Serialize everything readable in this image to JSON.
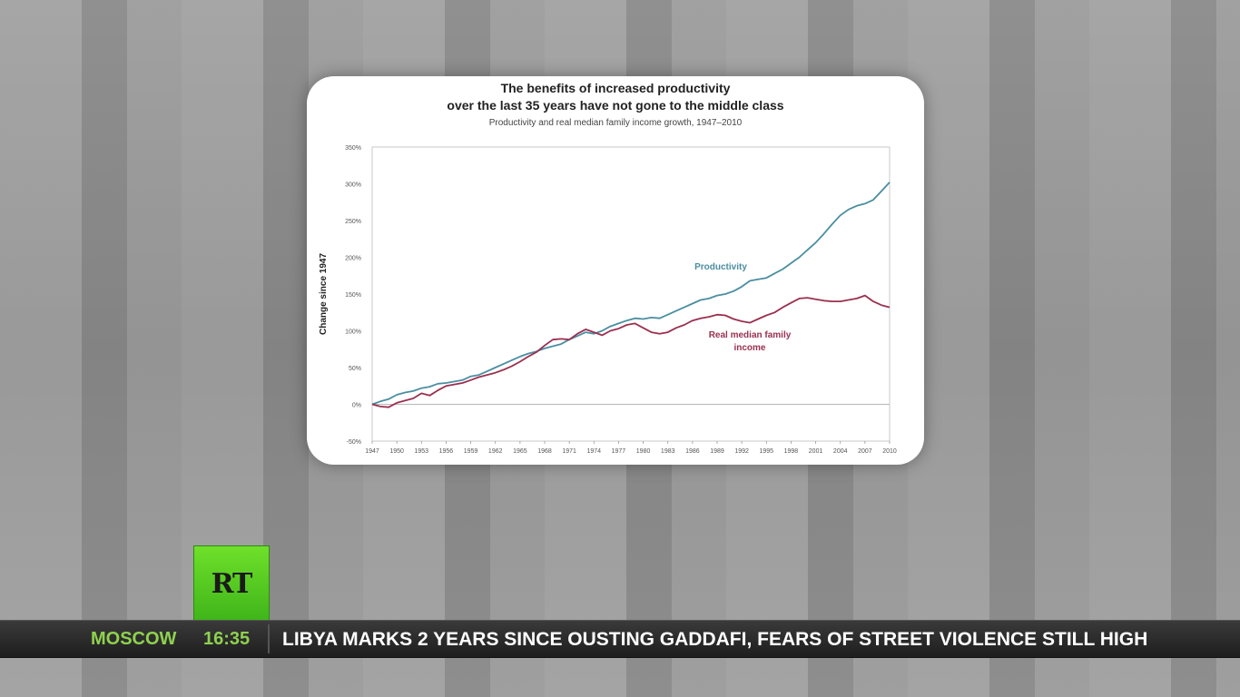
{
  "chart_data": {
    "type": "line",
    "title": "The benefits of increased productivity over the last 35 years have not gone to the middle class",
    "title_line1": "The benefits of increased productivity",
    "title_line2": "over the last 35 years have not gone to the middle class",
    "subtitle": "Productivity and real median family income growth, 1947–2010",
    "xlabel": "",
    "ylabel": "Change since 1947",
    "xlim": [
      1947,
      2010
    ],
    "ylim": [
      -50,
      350
    ],
    "y_ticks": [
      -50,
      0,
      50,
      100,
      150,
      200,
      250,
      300,
      350
    ],
    "y_tick_labels": [
      "-50%",
      "0%",
      "50%",
      "100%",
      "150%",
      "200%",
      "250%",
      "300%",
      "350%"
    ],
    "x_ticks": [
      1947,
      1950,
      1953,
      1956,
      1959,
      1962,
      1965,
      1968,
      1971,
      1974,
      1977,
      1980,
      1983,
      1986,
      1989,
      1992,
      1995,
      1998,
      2001,
      2004,
      2007,
      2010
    ],
    "grid": false,
    "series": [
      {
        "name": "Productivity",
        "color": "#4a8ea0",
        "x": [
          1947,
          1948,
          1949,
          1950,
          1951,
          1952,
          1953,
          1954,
          1955,
          1956,
          1957,
          1958,
          1959,
          1960,
          1961,
          1962,
          1963,
          1964,
          1965,
          1966,
          1967,
          1968,
          1969,
          1970,
          1971,
          1972,
          1973,
          1974,
          1975,
          1976,
          1977,
          1978,
          1979,
          1980,
          1981,
          1982,
          1983,
          1984,
          1985,
          1986,
          1987,
          1988,
          1989,
          1990,
          1991,
          1992,
          1993,
          1994,
          1995,
          1996,
          1997,
          1998,
          1999,
          2000,
          2001,
          2002,
          2003,
          2004,
          2005,
          2006,
          2007,
          2008,
          2009,
          2010
        ],
        "y": [
          0,
          4,
          7,
          13,
          16,
          18,
          22,
          24,
          28,
          29,
          31,
          33,
          38,
          40,
          45,
          50,
          55,
          60,
          65,
          69,
          72,
          76,
          79,
          82,
          88,
          93,
          98,
          96,
          100,
          106,
          110,
          114,
          117,
          116,
          118,
          117,
          122,
          127,
          132,
          137,
          142,
          144,
          148,
          150,
          154,
          160,
          168,
          170,
          172,
          178,
          184,
          192,
          200,
          210,
          220,
          232,
          245,
          257,
          265,
          270,
          273,
          278,
          290,
          302
        ]
      },
      {
        "name": "Real median family income",
        "color": "#9a3050",
        "x": [
          1947,
          1948,
          1949,
          1950,
          1951,
          1952,
          1953,
          1954,
          1955,
          1956,
          1957,
          1958,
          1959,
          1960,
          1961,
          1962,
          1963,
          1964,
          1965,
          1966,
          1967,
          1968,
          1969,
          1970,
          1971,
          1972,
          1973,
          1974,
          1975,
          1976,
          1977,
          1978,
          1979,
          1980,
          1981,
          1982,
          1983,
          1984,
          1985,
          1986,
          1987,
          1988,
          1989,
          1990,
          1991,
          1992,
          1993,
          1994,
          1995,
          1996,
          1997,
          1998,
          1999,
          2000,
          2001,
          2002,
          2003,
          2004,
          2005,
          2006,
          2007,
          2008,
          2009,
          2010
        ],
        "y": [
          0,
          -3,
          -4,
          2,
          5,
          8,
          15,
          12,
          19,
          25,
          27,
          29,
          33,
          37,
          40,
          43,
          47,
          52,
          58,
          65,
          71,
          80,
          88,
          89,
          88,
          96,
          102,
          98,
          94,
          100,
          103,
          108,
          110,
          104,
          98,
          96,
          98,
          104,
          108,
          114,
          117,
          119,
          122,
          121,
          116,
          113,
          111,
          116,
          121,
          125,
          132,
          138,
          144,
          145,
          143,
          141,
          140,
          140,
          142,
          144,
          148,
          140,
          135,
          132
        ]
      }
    ],
    "annotations": [
      {
        "text": "Productivity",
        "color": "#4a8ea0"
      },
      {
        "text": "Real median family income",
        "color": "#9a3050"
      }
    ]
  },
  "ticker": {
    "city": "MOSCOW",
    "time": "16:35",
    "headline": "LIBYA MARKS 2 YEARS SINCE OUSTING GADDAFI, FEARS OF STREET VIOLENCE STILL HIGH"
  },
  "logo": {
    "text": "RT"
  }
}
